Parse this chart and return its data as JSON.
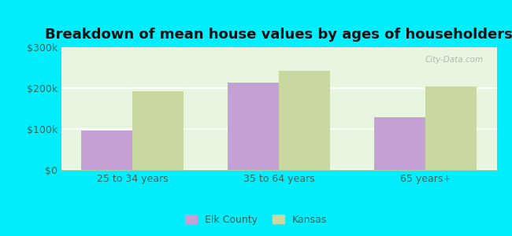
{
  "title": "Breakdown of mean house values by ages of householders",
  "categories": [
    "25 to 34 years",
    "35 to 64 years",
    "65 years+"
  ],
  "elk_county_values": [
    97000,
    213000,
    128000
  ],
  "kansas_values": [
    192000,
    242000,
    203000
  ],
  "elk_county_color": "#c4a0d4",
  "kansas_color": "#c8d8a0",
  "ylim": [
    0,
    300000
  ],
  "yticks": [
    0,
    100000,
    200000,
    300000
  ],
  "ytick_labels": [
    "$0",
    "$100k",
    "$200k",
    "$300k"
  ],
  "bar_width": 0.35,
  "background_color": "#00eeff",
  "plot_bg_color": "#e8f5e0",
  "legend_labels": [
    "Elk County",
    "Kansas"
  ],
  "title_fontsize": 13,
  "tick_label_color": "#336655",
  "watermark": "City-Data.com"
}
